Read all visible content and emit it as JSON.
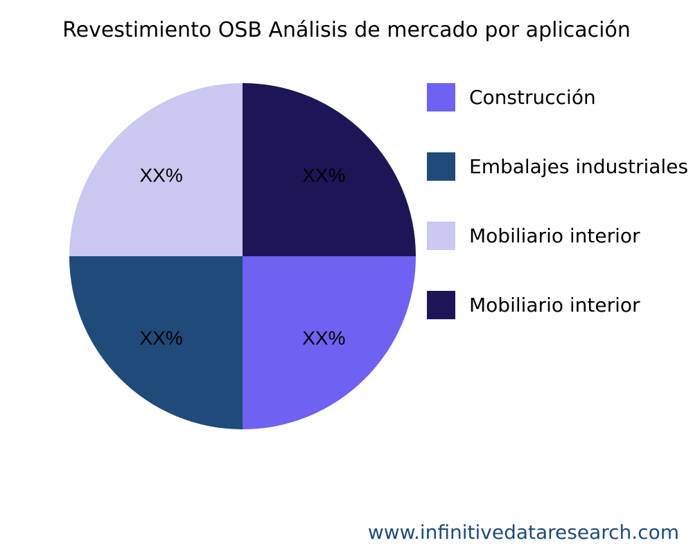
{
  "chart_data": {
    "type": "pie",
    "title": "Revestimiento OSB Análisis de mercado por aplicación",
    "slices": [
      {
        "label": "Construcción",
        "value": 25,
        "text": "XX%",
        "color": "#6f61f2"
      },
      {
        "label": "Embalajes industriales",
        "value": 25,
        "text": "XX%",
        "color": "#1f4a7a"
      },
      {
        "label": "Mobiliario interior",
        "value": 25,
        "text": "XX%",
        "color": "#c8c8f0"
      },
      {
        "label": "Mobiliario interior",
        "value": 25,
        "text": "XX%",
        "color": "#1c1657"
      }
    ],
    "legend_placement": "right"
  },
  "footer": "www.infinitivedataresearch.com"
}
